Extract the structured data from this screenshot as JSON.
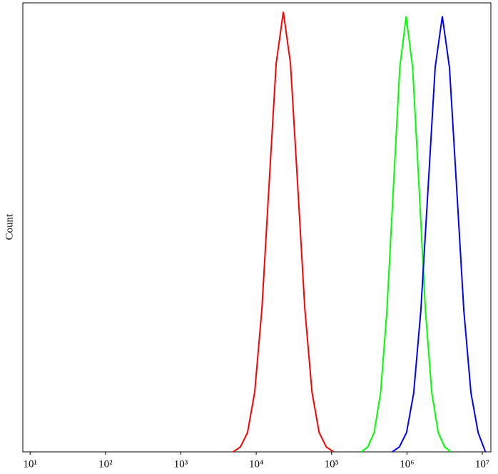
{
  "chart_data": {
    "type": "line",
    "ylabel": "Count",
    "xscale": "log",
    "xlim": [
      8,
      13000000
    ],
    "ylim": [
      0,
      100
    ],
    "xticks": [
      {
        "value": 10,
        "label": "10¹"
      },
      {
        "value": 100,
        "label": "10²"
      },
      {
        "value": 1000,
        "label": "10³"
      },
      {
        "value": 10000,
        "label": "10⁴"
      },
      {
        "value": 100000,
        "label": "10⁵"
      },
      {
        "value": 1000000,
        "label": "10⁶"
      },
      {
        "value": 10000000,
        "label": "10⁷"
      }
    ],
    "series": [
      {
        "color": "#ff0000",
        "x": [
          4950,
          6170,
          7670,
          9550,
          11900,
          14800,
          18400,
          22900,
          28500,
          35500,
          44200,
          55000,
          68400,
          85100,
          106000
        ],
        "values": [
          0,
          1.1,
          4.3,
          13.3,
          31.8,
          59.4,
          86.5,
          98,
          86.5,
          59.4,
          31.8,
          13.3,
          4.3,
          1.1,
          0
        ]
      },
      {
        "color": "#00ff00",
        "x": [
          248000,
          302000,
          367000,
          447000,
          543000,
          661000,
          804000,
          977000,
          1190000,
          1450000,
          1760000,
          2140000,
          2600000,
          3160000,
          3850000
        ],
        "values": [
          0,
          1.1,
          4.3,
          13.1,
          31.5,
          58.8,
          85.6,
          97,
          85.6,
          58.8,
          31.5,
          13.1,
          4.3,
          1.1,
          0
        ]
      },
      {
        "color": "#0000ff",
        "x": [
          638000,
          794000,
          989000,
          1230000,
          1530000,
          1910000,
          2370000,
          2950000,
          3670000,
          4570000,
          5690000,
          7080000,
          8810000,
          11000000
        ],
        "values": [
          0,
          1.1,
          4.3,
          13.1,
          31.5,
          58.8,
          85.6,
          97,
          85.6,
          58.8,
          31.5,
          13.1,
          4.3,
          0
        ]
      }
    ]
  }
}
